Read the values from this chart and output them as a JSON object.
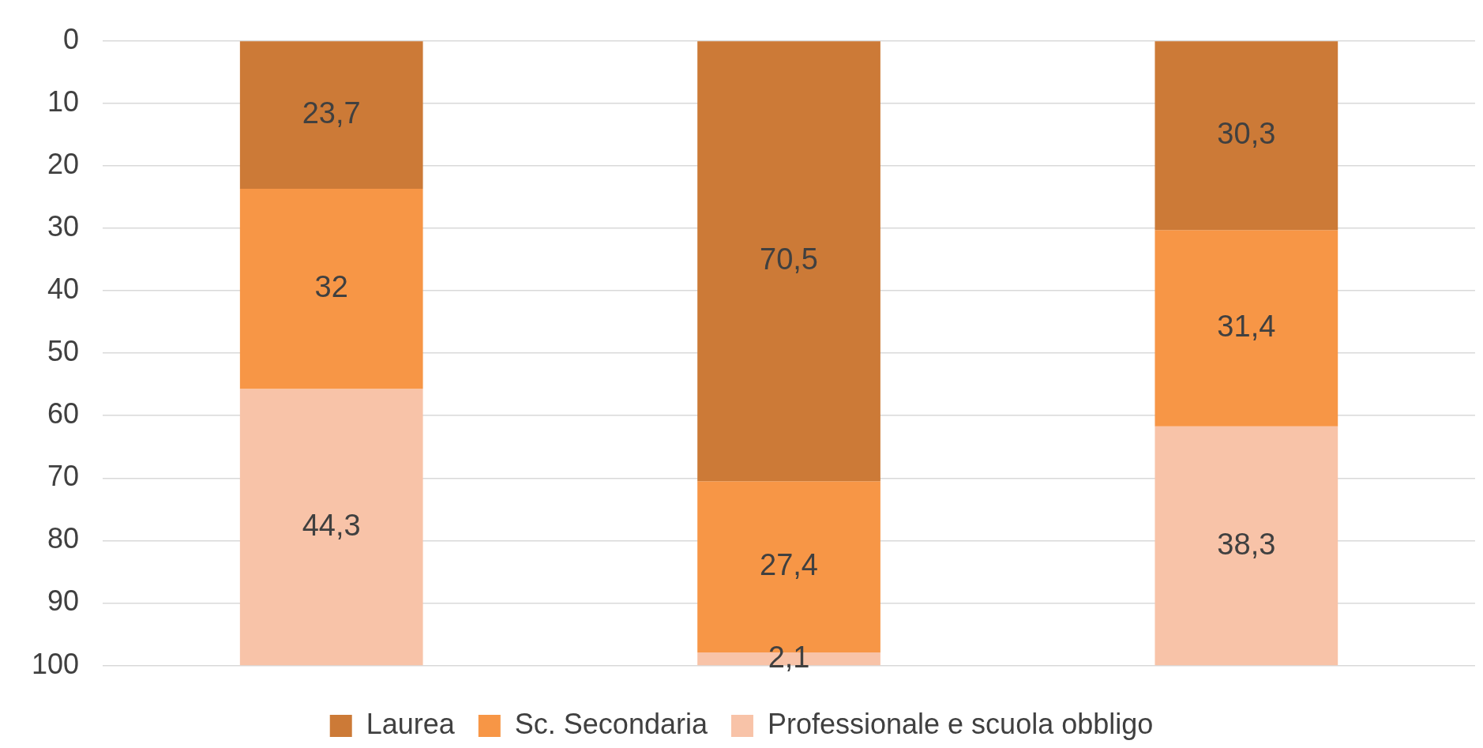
{
  "chart_data": {
    "type": "bar",
    "stacked": true,
    "categories": [
      null,
      null,
      null
    ],
    "series": [
      {
        "name": "Laurea",
        "color": "#cc7a37",
        "values": [
          23.7,
          70.5,
          30.3
        ],
        "value_labels": [
          "23,7",
          "70,5",
          "30,3"
        ]
      },
      {
        "name": "Sc. Secondaria",
        "color": "#f79646",
        "values": [
          32,
          27.4,
          31.4
        ],
        "value_labels": [
          "32",
          "27,4",
          "31,4"
        ]
      },
      {
        "name": "Professionale e scuola obbligo",
        "color": "#f8c3a8",
        "values": [
          44.3,
          2.1,
          38.3
        ],
        "value_labels": [
          "44,3",
          "2,1",
          "38,3"
        ]
      }
    ],
    "ylim": [
      100,
      0
    ],
    "yticks": [
      0,
      10,
      20,
      30,
      40,
      50,
      60,
      70,
      80,
      90,
      100
    ],
    "grid": "y",
    "legend": "bottom"
  }
}
